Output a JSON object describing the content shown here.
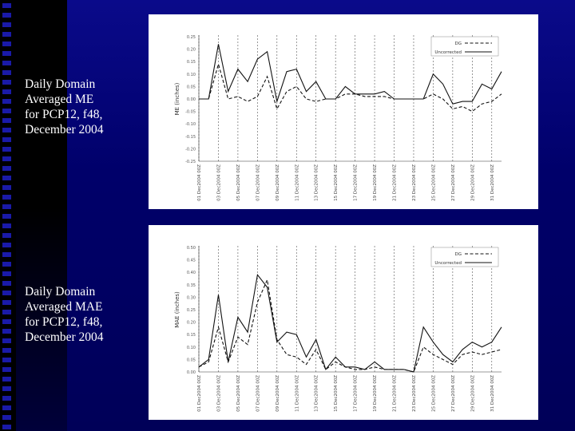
{
  "slide": {
    "captions": [
      {
        "lines": [
          "Daily Domain",
          "Averaged ME",
          "for PCP12, f48,",
          "December 2004"
        ]
      },
      {
        "lines": [
          "Daily Domain",
          "Averaged MAE",
          "for PCP12, f48,",
          "December 2004"
        ]
      }
    ],
    "colors": {
      "background": "#00006e",
      "caption_text": "#ffffff",
      "panel": "#ffffff"
    }
  },
  "chart_data": [
    {
      "type": "line",
      "title": "",
      "ylabel": "ME (inches)",
      "xlabel": "",
      "ylim": [
        -0.25,
        0.25
      ],
      "yticks": [
        "0.25",
        "0.20",
        "0.15",
        "0.10",
        "0.05",
        "0.00",
        "-0.05",
        "-0.10",
        "-0.15",
        "-0.20",
        "-0.25"
      ],
      "xtick_labels": [
        "01 Dec2004 00Z",
        "03 Dec2004 00Z",
        "05 Dec2004 00Z",
        "07 Dec2004 00Z",
        "09 Dec2004 00Z",
        "11 Dec2004 00Z",
        "13 Dec2004 00Z",
        "15 Dec2004 00Z",
        "17 Dec2004 00Z",
        "19 Dec2004 00Z",
        "21 Dec2004 00Z",
        "23 Dec2004 00Z",
        "25 Dec2004 00Z",
        "27 Dec2004 00Z",
        "29 Dec2004 00Z",
        "31 Dec2004 00Z"
      ],
      "grid": "vertical-dashed",
      "legend_position": "top-right",
      "series": [
        {
          "name": "DG",
          "style": "dashed",
          "values": [
            0.0,
            0.0,
            0.14,
            0.0,
            0.01,
            -0.01,
            0.01,
            0.09,
            -0.04,
            0.03,
            0.05,
            0.0,
            -0.01,
            0.0,
            0.0,
            0.02,
            0.02,
            0.01,
            0.01,
            0.01,
            0.0,
            0.0,
            0.0,
            0.0,
            0.02,
            0.0,
            -0.04,
            -0.03,
            -0.05,
            -0.02,
            -0.01,
            0.02
          ]
        },
        {
          "name": "Uncorrected",
          "style": "solid",
          "values": [
            0.0,
            0.0,
            0.22,
            0.03,
            0.12,
            0.07,
            0.16,
            0.19,
            -0.01,
            0.11,
            0.12,
            0.03,
            0.07,
            0.0,
            0.0,
            0.05,
            0.02,
            0.02,
            0.02,
            0.03,
            0.0,
            0.0,
            0.0,
            0.0,
            0.1,
            0.06,
            -0.02,
            -0.01,
            -0.01,
            0.06,
            0.04,
            0.11
          ]
        }
      ]
    },
    {
      "type": "line",
      "title": "",
      "ylabel": "MAE (inches)",
      "xlabel": "",
      "ylim": [
        0.0,
        0.5
      ],
      "yticks": [
        "0.50",
        "0.45",
        "0.40",
        "0.35",
        "0.30",
        "0.25",
        "0.20",
        "0.15",
        "0.10",
        "0.05",
        "0.00"
      ],
      "xtick_labels": [
        "01 Dec2004 00Z",
        "03 Dec2004 00Z",
        "05 Dec2004 00Z",
        "07 Dec2004 00Z",
        "09 Dec2004 00Z",
        "11 Dec2004 00Z",
        "13 Dec2004 00Z",
        "15 Dec2004 00Z",
        "17 Dec2004 00Z",
        "19 Dec2004 00Z",
        "21 Dec2004 00Z",
        "23 Dec2004 00Z",
        "25 Dec2004 00Z",
        "27 Dec2004 00Z",
        "29 Dec2004 00Z",
        "31 Dec2004 00Z"
      ],
      "grid": "vertical-dashed",
      "legend_position": "top-right",
      "series": [
        {
          "name": "DG",
          "style": "dashed",
          "values": [
            0.02,
            0.04,
            0.18,
            0.04,
            0.14,
            0.11,
            0.28,
            0.37,
            0.13,
            0.07,
            0.06,
            0.03,
            0.09,
            0.01,
            0.04,
            0.02,
            0.01,
            0.01,
            0.02,
            0.01,
            0.01,
            0.01,
            0.0,
            0.1,
            0.07,
            0.05,
            0.03,
            0.07,
            0.08,
            0.07,
            0.08,
            0.09
          ]
        },
        {
          "name": "Uncorrected",
          "style": "solid",
          "values": [
            0.02,
            0.05,
            0.31,
            0.04,
            0.22,
            0.16,
            0.39,
            0.34,
            0.12,
            0.16,
            0.15,
            0.06,
            0.13,
            0.01,
            0.06,
            0.02,
            0.02,
            0.01,
            0.04,
            0.01,
            0.01,
            0.01,
            0.0,
            0.18,
            0.12,
            0.07,
            0.04,
            0.09,
            0.12,
            0.1,
            0.12,
            0.18
          ]
        }
      ]
    }
  ]
}
